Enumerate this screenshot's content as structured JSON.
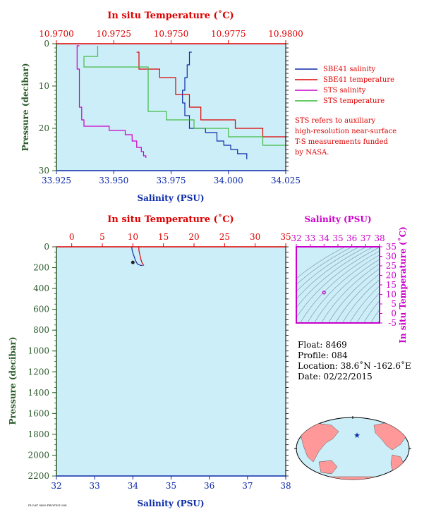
{
  "colors": {
    "plot_bg": "#cceef8",
    "red": "#dd0000",
    "blue": "#0b2aa8",
    "magenta": "#cc00cc",
    "green": "#2a5a2a",
    "light_green": "#66cc66",
    "salmon": "#ff9999",
    "black": "#000000"
  },
  "chart_data": [
    {
      "type": "line",
      "id": "upper-profile",
      "top_axis_label": "In situ Temperature (˚C)",
      "bottom_axis_label": "Salinity (PSU)",
      "ylabel": "Pressure (decibar)",
      "xlim_salinity": [
        33.925,
        34.025
      ],
      "xlim_temperature": [
        10.97,
        10.98
      ],
      "ylim": [
        0,
        30
      ],
      "temp_ticks": [
        "10.9700",
        "10.9725",
        "10.9750",
        "10.9775",
        "10.9800"
      ],
      "sal_ticks": [
        "33.925",
        "33.950",
        "33.975",
        "34.000",
        "34.025"
      ],
      "pressure_ticks": [
        "0",
        "10",
        "20",
        "30"
      ],
      "legend": [
        {
          "label": "SBE41 salinity",
          "color": "#0b2aa8"
        },
        {
          "label": "SBE41 temperature",
          "color": "#dd0000"
        },
        {
          "label": "STS salinity",
          "color": "#cc00cc"
        },
        {
          "label": "STS temperature",
          "color": "#33bb33"
        }
      ],
      "note": [
        "STS refers to auxiliary",
        "high-resolution near-surface",
        "T-S measurements funded",
        "by NASA."
      ],
      "series": [
        {
          "name": "SBE41 salinity",
          "axis": "salinity",
          "points": [
            [
              33.984,
              2
            ],
            [
              33.983,
              5
            ],
            [
              33.982,
              8
            ],
            [
              33.981,
              11
            ],
            [
              33.98,
              14
            ],
            [
              33.981,
              17
            ],
            [
              33.983,
              20
            ],
            [
              33.99,
              21
            ],
            [
              33.995,
              23
            ],
            [
              33.998,
              24
            ],
            [
              34.001,
              25
            ],
            [
              34.004,
              26
            ],
            [
              34.008,
              27.3
            ]
          ]
        },
        {
          "name": "SBE41 temperature",
          "axis": "temperature",
          "points": [
            [
              10.9735,
              2
            ],
            [
              10.9736,
              6
            ],
            [
              10.9745,
              8
            ],
            [
              10.9752,
              12
            ],
            [
              10.9758,
              15
            ],
            [
              10.9763,
              18
            ],
            [
              10.9778,
              20
            ],
            [
              10.979,
              22
            ],
            [
              10.98,
              24
            ],
            [
              10.9805,
              25
            ],
            [
              10.981,
              27.3
            ]
          ]
        },
        {
          "name": "STS salinity",
          "axis": "salinity",
          "points": [
            [
              33.935,
              0.5
            ],
            [
              33.934,
              3
            ],
            [
              33.934,
              6
            ],
            [
              33.935,
              10
            ],
            [
              33.935,
              15
            ],
            [
              33.936,
              18
            ],
            [
              33.937,
              19.5
            ],
            [
              33.948,
              20.5
            ],
            [
              33.955,
              21.5
            ],
            [
              33.958,
              23
            ],
            [
              33.96,
              24.5
            ],
            [
              33.962,
              25.5
            ],
            [
              33.963,
              26.5
            ],
            [
              33.964,
              27
            ]
          ]
        },
        {
          "name": "STS temperature",
          "axis": "temperature",
          "points": [
            [
              10.9718,
              0.5
            ],
            [
              10.9718,
              3
            ],
            [
              10.9712,
              5.5
            ],
            [
              10.974,
              7
            ],
            [
              10.974,
              16
            ],
            [
              10.9748,
              18
            ],
            [
              10.976,
              20
            ],
            [
              10.9775,
              22
            ],
            [
              10.979,
              24
            ],
            [
              10.98,
              25
            ],
            [
              10.9812,
              27
            ]
          ]
        }
      ]
    },
    {
      "type": "line",
      "id": "full-profile",
      "top_axis_label": "In situ Temperature (˚C)",
      "bottom_axis_label": "Salinity (PSU)",
      "ylabel": "Pressure (decibar)",
      "xlim_salinity": [
        32,
        38
      ],
      "xlim_temperature": [
        -2.5,
        35
      ],
      "ylim": [
        0,
        2200
      ],
      "temp_ticks": [
        "0",
        "5",
        "10",
        "15",
        "20",
        "25",
        "30",
        "35"
      ],
      "sal_ticks": [
        "32",
        "33",
        "34",
        "35",
        "36",
        "37",
        "38"
      ],
      "pressure_ticks": [
        "0",
        "200",
        "400",
        "600",
        "800",
        "1000",
        "1200",
        "1400",
        "1600",
        "1800",
        "2000",
        "2200"
      ],
      "series": [
        {
          "name": "SBE41 salinity",
          "axis": "salinity",
          "points": [
            [
              33.97,
              0
            ],
            [
              33.98,
              30
            ],
            [
              34.01,
              70
            ],
            [
              34.05,
              110
            ],
            [
              34.08,
              140
            ],
            [
              34.12,
              165
            ],
            [
              34.2,
              178
            ],
            [
              34.25,
              180
            ]
          ]
        },
        {
          "name": "SBE41 temperature",
          "axis": "temperature",
          "points": [
            [
              10.97,
              0
            ],
            [
              11.0,
              40
            ],
            [
              11.2,
              90
            ],
            [
              11.4,
              140
            ],
            [
              11.6,
              165
            ],
            [
              11.8,
              180
            ]
          ]
        }
      ],
      "marker": {
        "salinity": 34.0,
        "pressure": 150
      }
    },
    {
      "type": "scatter",
      "id": "ts-diagram",
      "top_axis_label": "Salinity (PSU)",
      "right_axis_label": "In situ Temperature (˚C)",
      "xlim": [
        32,
        38
      ],
      "ylim": [
        -5,
        35
      ],
      "x_ticks": [
        "32",
        "33",
        "34",
        "35",
        "36",
        "37",
        "38"
      ],
      "y_ticks": [
        "-5",
        "0",
        "5",
        "10",
        "15",
        "20",
        "25",
        "30",
        "35"
      ],
      "points": [
        [
          34.0,
          10.97
        ]
      ]
    }
  ],
  "float_info": {
    "float": "Float:  8469",
    "profile": "Profile:  084",
    "location": "Location:  38.6˚N  -162.6˚E",
    "date": "Date:  02/22/2015"
  },
  "map": {
    "marker_lat": 38.6,
    "marker_lon": -162.6
  },
  "footer_text": "FLOAT 8469 PROFILE 084"
}
